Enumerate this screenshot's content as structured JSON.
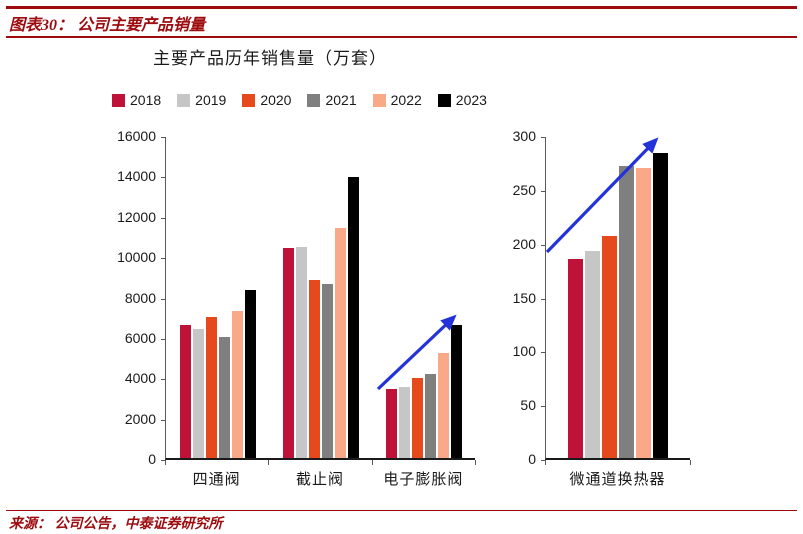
{
  "header": {
    "title": "图表30： 公司主要产品销量"
  },
  "footer": {
    "source": "来源： 公司公告，中泰证券研究所"
  },
  "theme": {
    "brand_red": "#9e0b0f"
  },
  "chart_data": {
    "type": "bar",
    "title": "主要产品历年销售量（万套）",
    "legend": [
      "2018",
      "2019",
      "2020",
      "2021",
      "2022",
      "2023"
    ],
    "colors": [
      "#bf1238",
      "#c6c6c6",
      "#e64a1c",
      "#7f7f7f",
      "#f9a888",
      "#000000"
    ],
    "legend_position": "top",
    "grid": false,
    "arrow_color": "#2433d9",
    "annotations": [
      "upward blue trend arrow over 电子膨胀阀 group",
      "upward blue trend arrow over 微通道换热器 group"
    ],
    "panels": [
      {
        "categories": [
          "四通阀",
          "截止阀",
          "电子膨胀阀"
        ],
        "ylim": [
          0,
          16000
        ],
        "ytick_step": 2000,
        "series": [
          {
            "name": "2018",
            "values": [
              6600,
              10400,
              3400
            ]
          },
          {
            "name": "2019",
            "values": [
              6400,
              10450,
              3500
            ]
          },
          {
            "name": "2020",
            "values": [
              7000,
              8800,
              3950
            ]
          },
          {
            "name": "2021",
            "values": [
              6000,
              8600,
              4150
            ]
          },
          {
            "name": "2022",
            "values": [
              7300,
              11400,
              5200
            ]
          },
          {
            "name": "2023",
            "values": [
              8300,
              13900,
              6600
            ]
          }
        ]
      },
      {
        "categories": [
          "微通道换热器"
        ],
        "ylim": [
          0,
          300
        ],
        "ytick_step": 50,
        "series": [
          {
            "name": "2018",
            "values": [
              185
            ]
          },
          {
            "name": "2019",
            "values": [
              192
            ]
          },
          {
            "name": "2020",
            "values": [
              206
            ]
          },
          {
            "name": "2021",
            "values": [
              271
            ]
          },
          {
            "name": "2022",
            "values": [
              269
            ]
          },
          {
            "name": "2023",
            "values": [
              283
            ]
          }
        ]
      }
    ]
  }
}
